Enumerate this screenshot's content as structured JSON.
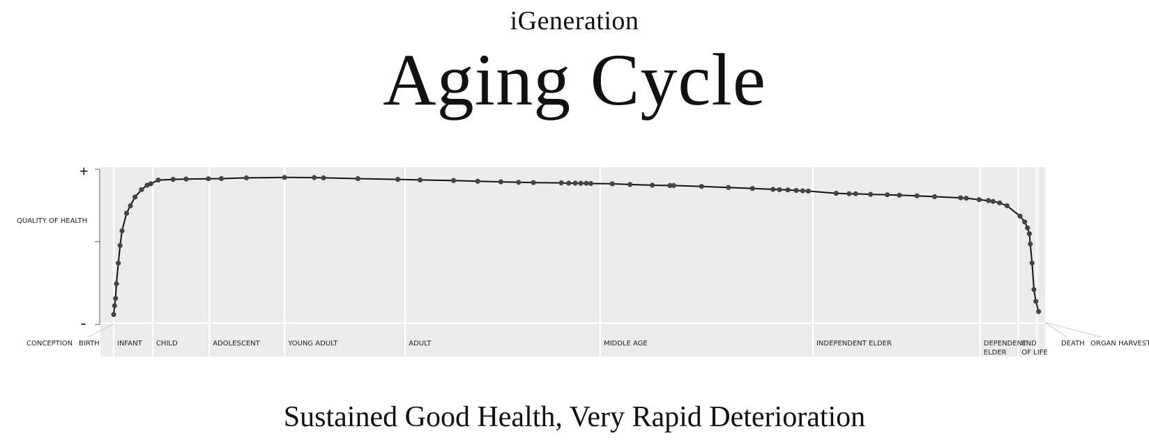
{
  "header": {
    "supertitle": "iGeneration",
    "title": "Aging Cycle",
    "subtitle": "Sustained Good Health, Very Rapid Deterioration"
  },
  "chart_data": {
    "type": "line",
    "title": "Aging Cycle",
    "ylabel": "QUALITY OF HEALTH",
    "y_top_label": "+",
    "y_bottom_label": "-",
    "ylim": [
      0,
      100
    ],
    "xlim": [
      0,
      100
    ],
    "grid": false,
    "colors": {
      "line": "#111111",
      "marker": "#444444",
      "band": "#ebebeb",
      "divider": "#ffffff"
    },
    "stage_boundaries": [
      0,
      4.2,
      10.3,
      18.4,
      31.4,
      52.4,
      75.3,
      93.3,
      97.4,
      99.4
    ],
    "stages": [
      {
        "name": "INFANT",
        "line2": "",
        "start": 0
      },
      {
        "name": "CHILD",
        "line2": "",
        "start": 4.2
      },
      {
        "name": "ADOLESCENT",
        "line2": "",
        "start": 10.3
      },
      {
        "name": "YOUNG ADULT",
        "line2": "",
        "start": 18.4
      },
      {
        "name": "ADULT",
        "line2": "",
        "start": 31.4
      },
      {
        "name": "MIDDLE AGE",
        "line2": "",
        "start": 52.4
      },
      {
        "name": "INDEPENDENT ELDER",
        "line2": "",
        "start": 75.3
      },
      {
        "name": "DEPENDENT",
        "line2": "ELDER",
        "start": 93.3
      },
      {
        "name": "END",
        "line2": "OF LIFE",
        "start": 97.4
      }
    ],
    "outer_labels": {
      "conception": "CONCEPTION",
      "birth": "BIRTH",
      "death": "DEATH",
      "organ_harvest": "ORGAN HARVEST"
    },
    "x": [
      0,
      0.1,
      0.2,
      0.3,
      0.5,
      0.7,
      0.9,
      1.4,
      1.8,
      2.3,
      3.0,
      3.6,
      4.0,
      4.8,
      6.4,
      7.8,
      10.2,
      11.6,
      14.3,
      18.4,
      21.6,
      22.6,
      26.3,
      30.6,
      33.0,
      36.6,
      39.2,
      41.7,
      43.6,
      45.2,
      48.2,
      49.0,
      49.7,
      50.3,
      50.9,
      51.4,
      53.7,
      55.6,
      58.0,
      59.9,
      60.3,
      63.3,
      66.2,
      68.8,
      71.0,
      71.7,
      72.6,
      73.5,
      74.2,
      74.8,
      77.8,
      79.2,
      79.9,
      81.5,
      83.3,
      84.6,
      86.5,
      88.4,
      91.2,
      91.8,
      93.2,
      94.2,
      94.7,
      95.4,
      96.2,
      97.6,
      98.1,
      98.4,
      98.6,
      98.7,
      98.9,
      99.1,
      99.3,
      99.6
    ],
    "y": [
      3,
      9,
      14,
      24,
      38,
      50,
      60,
      72,
      77,
      83,
      88,
      91,
      92,
      94.5,
      95,
      95.2,
      95.4,
      95.5,
      96,
      96.3,
      96.2,
      96,
      95.5,
      95,
      94.6,
      94.2,
      93.7,
      93.3,
      93,
      92.8,
      92.6,
      92.4,
      92.4,
      92.3,
      92.3,
      92.2,
      92,
      91.5,
      91,
      90.8,
      90.8,
      90.2,
      89.5,
      88.8,
      88.2,
      88,
      87.8,
      87.5,
      87.2,
      87,
      85.5,
      85.2,
      85.2,
      84.8,
      84.5,
      84.2,
      83.8,
      83.2,
      82.4,
      82.2,
      81.2,
      80.5,
      80,
      79,
      77,
      70,
      66,
      62,
      58,
      51,
      38,
      20,
      12,
      5
    ]
  }
}
